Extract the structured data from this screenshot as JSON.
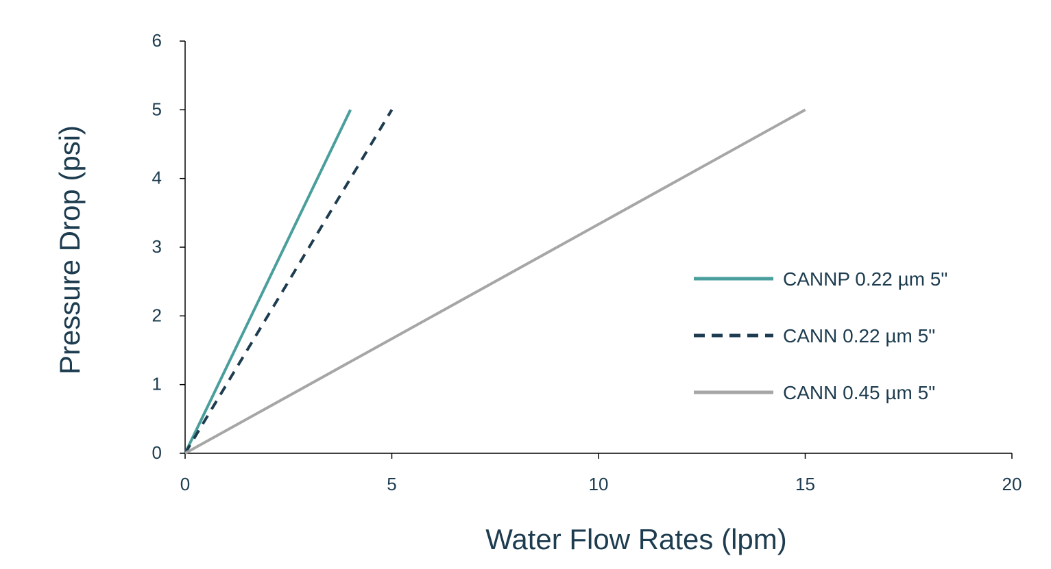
{
  "chart_data": {
    "type": "line",
    "xlabel": "Water Flow Rates (lpm)",
    "ylabel": "Pressure Drop (psi)",
    "xlim": [
      0,
      20
    ],
    "ylim": [
      0,
      6
    ],
    "x_ticks": [
      "0",
      "5",
      "10",
      "15",
      "20"
    ],
    "y_ticks": [
      "0",
      "1",
      "2",
      "3",
      "4",
      "5",
      "6"
    ],
    "grid": false,
    "legend_position": "right",
    "series": [
      {
        "name": "CANNP 0.22 µm 5\"",
        "x": [
          0,
          4
        ],
        "y": [
          0,
          5
        ],
        "color": "#4a9e9c",
        "style": "solid"
      },
      {
        "name": "CANN 0.22 µm 5\"",
        "x": [
          0,
          5
        ],
        "y": [
          0,
          5
        ],
        "color": "#1d3c4f",
        "style": "dashed"
      },
      {
        "name": "CANN 0.45 µm 5\"",
        "x": [
          0,
          15
        ],
        "y": [
          0,
          5
        ],
        "color": "#a6a6a6",
        "style": "solid"
      }
    ]
  }
}
